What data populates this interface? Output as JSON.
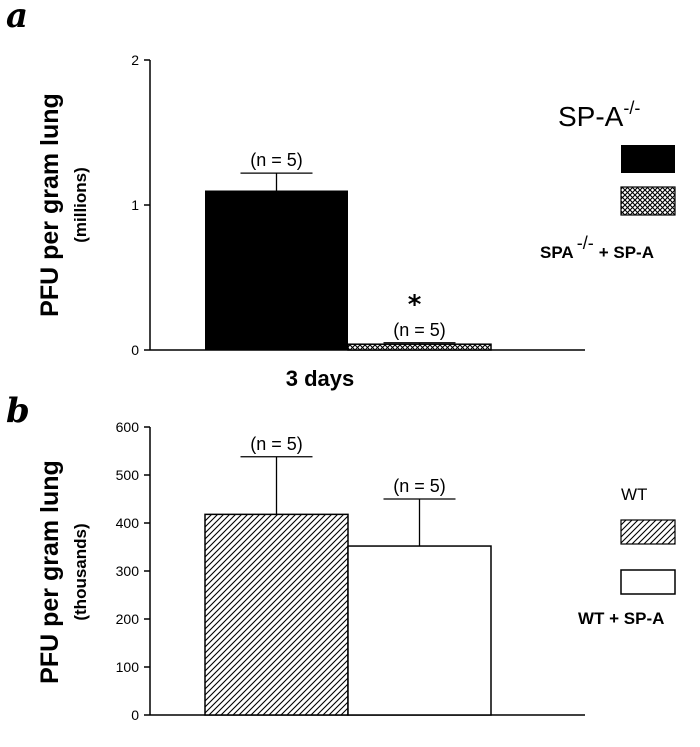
{
  "chart_data": [
    {
      "panel": "a",
      "type": "bar",
      "ylabel": "PFU per gram lung",
      "ylabel_unit": "(millions)",
      "yticks": [
        "0",
        "1",
        "2"
      ],
      "ylim": [
        0,
        2
      ],
      "x_category": "3 days",
      "series": [
        {
          "name": "SP-A-/-",
          "value": 1.1,
          "error": 0.12,
          "n_label": "(n = 5)",
          "color": "#000000",
          "pattern": "solid"
        },
        {
          "name": "SPA-/- + SP-A",
          "value": 0.04,
          "error": 0.01,
          "n_label": "(n = 5)",
          "color": "#000000",
          "pattern": "crosshatch",
          "significance": "*"
        }
      ],
      "legend": {
        "placement": "right",
        "title_main": "SP-A",
        "title_sup": "-/-",
        "entry2_main": "SPA",
        "entry2_sup": "-/-",
        "entry2_suffix": "+ SP-A"
      }
    },
    {
      "panel": "b",
      "type": "bar",
      "ylabel": "PFU per gram lung",
      "ylabel_unit": "(thousands)",
      "yticks": [
        "0",
        "100",
        "200",
        "300",
        "400",
        "500",
        "600"
      ],
      "ylim": [
        0,
        600
      ],
      "series": [
        {
          "name": "WT",
          "value": 418,
          "error": 120,
          "n_label": "(n = 5)",
          "color": "#000000",
          "pattern": "diagonal"
        },
        {
          "name": "WT + SP-A",
          "value": 352,
          "error": 98,
          "n_label": "(n = 5)",
          "color": "#ffffff",
          "pattern": "open"
        }
      ],
      "legend": {
        "placement": "right",
        "entry1": "WT",
        "entry2": "WT + SP-A"
      }
    }
  ]
}
